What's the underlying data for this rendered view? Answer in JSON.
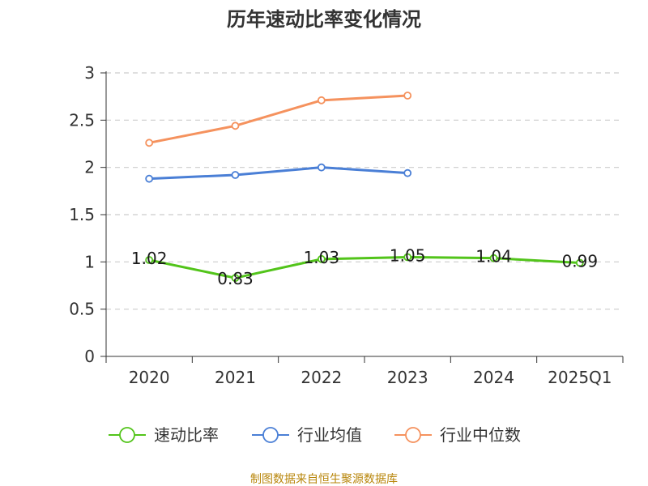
{
  "chart_data": {
    "type": "line",
    "title": "历年速动比率变化情况",
    "categories": [
      "2020",
      "2021",
      "2022",
      "2023",
      "2024",
      "2025Q1"
    ],
    "ylim": [
      0,
      3
    ],
    "yticks": [
      "0",
      "0.5",
      "1",
      "1.5",
      "2",
      "2.5",
      "3"
    ],
    "grid": true,
    "legend_position": "bottom",
    "series": [
      {
        "name": "速动比率",
        "color": "#52c41a",
        "values": [
          1.02,
          0.83,
          1.03,
          1.05,
          1.04,
          0.99
        ],
        "labels": [
          "1.02",
          "0.83",
          "1.03",
          "1.05",
          "1.04",
          "0.99"
        ]
      },
      {
        "name": "行业均值",
        "color": "#4a7fd6",
        "values": [
          1.88,
          1.92,
          2.0,
          1.94,
          null,
          null
        ]
      },
      {
        "name": "行业中位数",
        "color": "#f5925e",
        "values": [
          2.26,
          2.44,
          2.71,
          2.76,
          null,
          null
        ]
      }
    ],
    "source": "制图数据来自恒生聚源数据库"
  }
}
